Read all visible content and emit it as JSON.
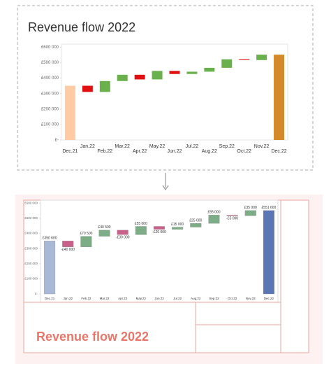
{
  "chart_data": [
    {
      "type": "waterfall",
      "title": "Revenue flow 2022",
      "categories": [
        "Dec.21",
        "Jan.22",
        "Feb.22",
        "Mar.22",
        "Apr.22",
        "May.22",
        "Jun.22",
        "Jul.22",
        "Aug.22",
        "Sep.22",
        "Oct.22",
        "Nov.22",
        "Dec.22"
      ],
      "values": [
        350600,
        -40000,
        70500,
        40500,
        -30000,
        55000,
        -20000,
        15000,
        25000,
        55000,
        -5000,
        35000,
        551600
      ],
      "measures": [
        "absolute",
        "relative",
        "relative",
        "relative",
        "relative",
        "relative",
        "relative",
        "relative",
        "relative",
        "relative",
        "relative",
        "relative",
        "total"
      ],
      "colors": {
        "absolute": "#ffcba4",
        "increase": "#6ab04c",
        "decrease": "#e01010",
        "total": "#d4892a"
      },
      "ylim": [
        0,
        620000
      ],
      "yticks": [
        {
          "value": 600000,
          "label": "£600 000"
        },
        {
          "value": 500000,
          "label": "£500 000"
        },
        {
          "value": 400000,
          "label": "£400 000"
        },
        {
          "value": 300000,
          "label": "£300 000"
        },
        {
          "value": 200000,
          "label": "£200 000"
        },
        {
          "value": 100000,
          "label": "£100 000"
        },
        {
          "value": 0,
          "label": "£-"
        }
      ],
      "grid": false
    },
    {
      "type": "waterfall",
      "title": "Revenue flow 2022",
      "categories": [
        "Dec.21",
        "Jan.22",
        "Feb.22",
        "Mar.22",
        "Apr.22",
        "May.22",
        "Jun.22",
        "Jul.22",
        "Aug.22",
        "Sep.22",
        "Oct.22",
        "Nov.22",
        "Dec.22"
      ],
      "values": [
        350600,
        -40000,
        70500,
        40500,
        -30000,
        55000,
        -20000,
        15000,
        25000,
        55000,
        -5000,
        35000,
        551600
      ],
      "value_labels": [
        "£350 600",
        "-£40 000",
        "£70 500",
        "£40 500",
        "-£30 000",
        "£55 000",
        "-£20 000",
        "£15 000",
        "£25 000",
        "£55 000",
        "-£5 000",
        "£35 000",
        "£551 600"
      ],
      "measures": [
        "absolute",
        "relative",
        "relative",
        "relative",
        "relative",
        "relative",
        "relative",
        "relative",
        "relative",
        "relative",
        "relative",
        "relative",
        "total"
      ],
      "colors": {
        "absolute": "#aab8d8",
        "increase": "#7cad86",
        "decrease": "#c8608a",
        "total": "#5b76b5"
      },
      "ylim": [
        0,
        620000
      ],
      "yticks": [
        {
          "value": 600000,
          "label": "£600 000"
        },
        {
          "value": 500000,
          "label": "£500 000"
        },
        {
          "value": 400000,
          "label": "£400 000"
        },
        {
          "value": 300000,
          "label": "£300 000"
        },
        {
          "value": 200000,
          "label": "£200 000"
        },
        {
          "value": 100000,
          "label": "£100 000"
        },
        {
          "value": 0,
          "label": "£-"
        }
      ],
      "grid": false
    }
  ]
}
